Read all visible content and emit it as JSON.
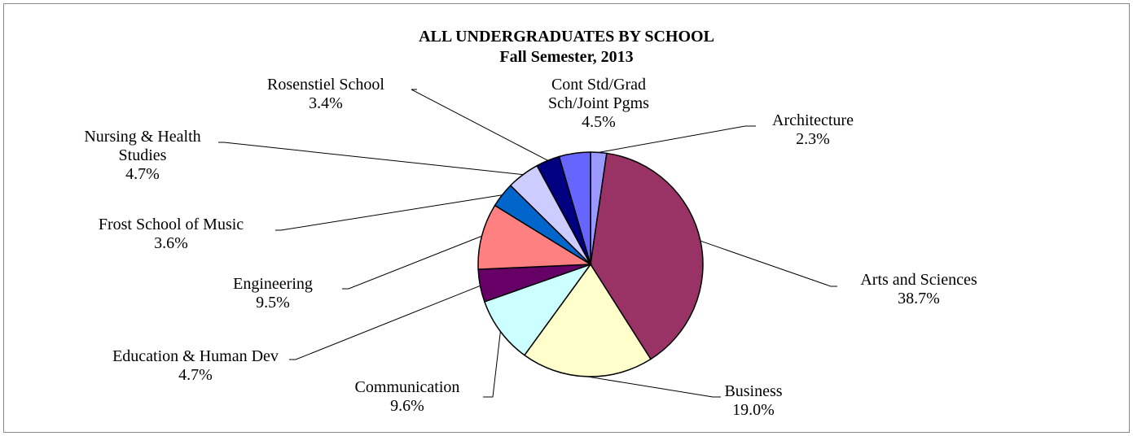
{
  "chart_data": {
    "type": "pie",
    "title": "ALL UNDERGRADUATES BY SCHOOL",
    "subtitle": "Fall Semester, 2013",
    "categories": [
      "Architecture",
      "Arts and Sciences",
      "Business",
      "Communication",
      "Education & Human Dev",
      "Engineering",
      "Frost School of Music",
      "Nursing & Health Studies",
      "Rosenstiel School",
      "Cont Std/Grad Sch/Joint Pgms"
    ],
    "values": [
      2.3,
      38.7,
      19.0,
      9.6,
      4.7,
      9.5,
      3.6,
      4.7,
      3.4,
      4.5
    ],
    "value_labels": [
      "2.3%",
      "38.7%",
      "19.0%",
      "9.6%",
      "4.7%",
      "9.5%",
      "3.6%",
      "4.7%",
      "3.4%",
      "4.5%"
    ],
    "colors": [
      "#9999ff",
      "#993366",
      "#ffffcc",
      "#ccffff",
      "#660066",
      "#ff8080",
      "#0066cc",
      "#ccccff",
      "#000080",
      "#6666ff"
    ]
  }
}
